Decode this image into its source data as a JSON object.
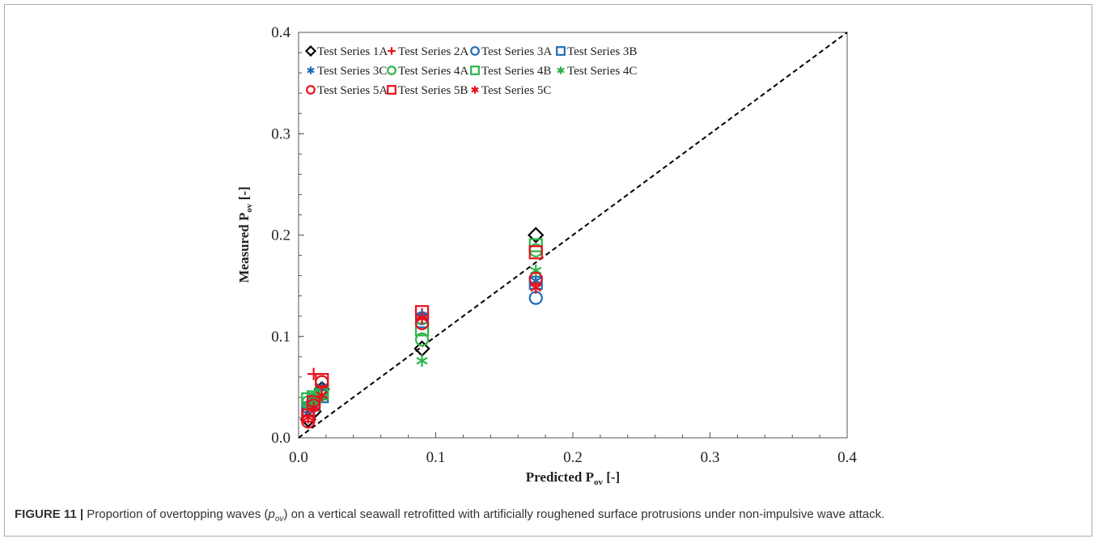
{
  "caption": {
    "label": "FIGURE 11 |",
    "text_before": "Proportion of overtopping waves (",
    "symbol": "p",
    "symbol_sub": "ov",
    "text_after": ") on a vertical seawall retrofitted with artificially roughened surface protrusions under non-impulsive wave attack."
  },
  "chart_data": {
    "type": "scatter",
    "title": "",
    "xlabel": {
      "main": "Predicted P",
      "sub": "ov",
      "suffix": " [-]"
    },
    "ylabel": {
      "main": "Measured P",
      "sub": "ov",
      "suffix": " [-]"
    },
    "xlim": [
      0,
      0.4
    ],
    "ylim": [
      0,
      0.4
    ],
    "xticks": [
      "0.0",
      "0.1",
      "0.2",
      "0.3",
      "0.4"
    ],
    "yticks": [
      "0.0",
      "0.1",
      "0.2",
      "0.3",
      "0.4"
    ],
    "grid": false,
    "legend_position": "top-left",
    "reference_line": {
      "style": "dashed",
      "from": [
        0,
        0
      ],
      "to": [
        0.4,
        0.4
      ]
    },
    "series": [
      {
        "name": "Test Series 1A",
        "marker": "diamond",
        "color": "#000000",
        "points": [
          [
            0.007,
            0.018
          ],
          [
            0.011,
            0.026
          ],
          [
            0.017,
            0.048
          ],
          [
            0.09,
            0.088
          ],
          [
            0.173,
            0.2
          ]
        ]
      },
      {
        "name": "Test Series 2A",
        "marker": "plus",
        "color": "#e8101b",
        "points": [
          [
            0.007,
            0.025
          ],
          [
            0.011,
            0.063
          ],
          [
            0.017,
            0.047
          ],
          [
            0.09,
            0.122
          ],
          [
            0.173,
            0.152
          ]
        ]
      },
      {
        "name": "Test Series 3A",
        "marker": "circle",
        "color": "#1f6db5",
        "points": [
          [
            0.007,
            0.03
          ],
          [
            0.011,
            0.036
          ],
          [
            0.017,
            0.044
          ],
          [
            0.09,
            0.118
          ],
          [
            0.173,
            0.138
          ]
        ]
      },
      {
        "name": "Test Series 3B",
        "marker": "square",
        "color": "#1f6db5",
        "points": [
          [
            0.007,
            0.028
          ],
          [
            0.011,
            0.033
          ],
          [
            0.017,
            0.041
          ],
          [
            0.09,
            0.115
          ],
          [
            0.173,
            0.153
          ]
        ]
      },
      {
        "name": "Test Series 3C",
        "marker": "asterisk",
        "color": "#1f6db5",
        "points": [
          [
            0.007,
            0.032
          ],
          [
            0.011,
            0.037
          ],
          [
            0.017,
            0.05
          ],
          [
            0.09,
            0.12
          ],
          [
            0.173,
            0.155
          ]
        ]
      },
      {
        "name": "Test Series 4A",
        "marker": "circle",
        "color": "#2db34a",
        "points": [
          [
            0.007,
            0.035
          ],
          [
            0.011,
            0.038
          ],
          [
            0.017,
            0.043
          ],
          [
            0.09,
            0.097
          ],
          [
            0.173,
            0.185
          ]
        ]
      },
      {
        "name": "Test Series 4B",
        "marker": "square",
        "color": "#2db34a",
        "points": [
          [
            0.007,
            0.038
          ],
          [
            0.011,
            0.04
          ],
          [
            0.017,
            0.045
          ],
          [
            0.09,
            0.107
          ],
          [
            0.173,
            0.19
          ]
        ]
      },
      {
        "name": "Test Series 4C",
        "marker": "asterisk",
        "color": "#2db34a",
        "points": [
          [
            0.007,
            0.033
          ],
          [
            0.011,
            0.036
          ],
          [
            0.017,
            0.04
          ],
          [
            0.09,
            0.076
          ],
          [
            0.173,
            0.165
          ]
        ]
      },
      {
        "name": "Test Series 5A",
        "marker": "circle",
        "color": "#e8101b",
        "points": [
          [
            0.007,
            0.016
          ],
          [
            0.011,
            0.032
          ],
          [
            0.017,
            0.055
          ],
          [
            0.09,
            0.113
          ],
          [
            0.173,
            0.157
          ]
        ]
      },
      {
        "name": "Test Series 5B",
        "marker": "square",
        "color": "#e8101b",
        "points": [
          [
            0.007,
            0.022
          ],
          [
            0.011,
            0.035
          ],
          [
            0.017,
            0.057
          ],
          [
            0.09,
            0.124
          ],
          [
            0.173,
            0.183
          ]
        ]
      },
      {
        "name": "Test Series 5C",
        "marker": "asterisk",
        "color": "#e8101b",
        "points": [
          [
            0.007,
            0.02
          ],
          [
            0.011,
            0.03
          ],
          [
            0.017,
            0.042
          ],
          [
            0.09,
            0.118
          ],
          [
            0.173,
            0.148
          ]
        ]
      }
    ]
  }
}
